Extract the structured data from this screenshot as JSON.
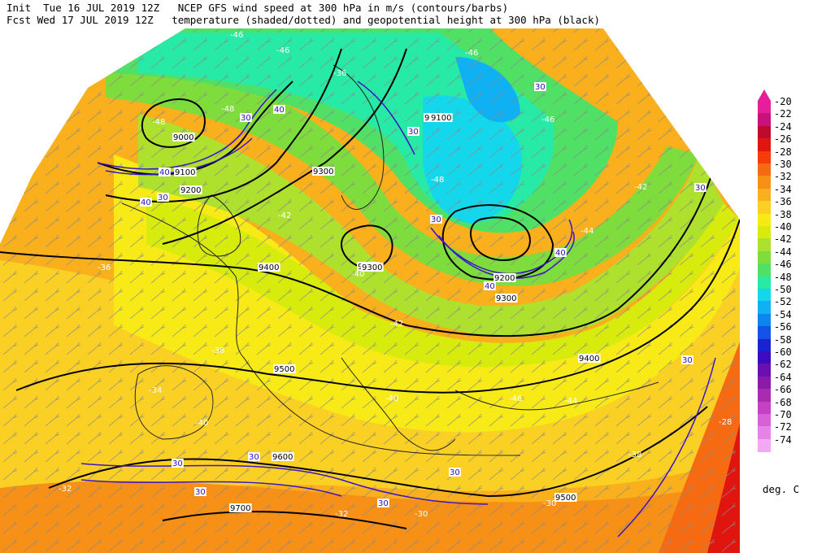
{
  "header": {
    "line1_left": "Init  Tue 16 JUL 2019 12Z",
    "line1_right": "NCEP GFS wind speed at 300 hPa in m/s (contours/barbs)",
    "line2_left": "Fcst Wed 17 JUL 2019 12Z",
    "line2_right": "temperature (shaded/dotted) and geopotential height at 300 hPa (black)"
  },
  "colorbar": {
    "units": "deg. C",
    "levels": [
      {
        "label": "-20",
        "color": "#e61e9a"
      },
      {
        "label": "-22",
        "color": "#c8117a"
      },
      {
        "label": "-24",
        "color": "#bd0a2d"
      },
      {
        "label": "-26",
        "color": "#e1150f"
      },
      {
        "label": "-28",
        "color": "#f53c0a"
      },
      {
        "label": "-30",
        "color": "#f66b11"
      },
      {
        "label": "-32",
        "color": "#f79016"
      },
      {
        "label": "-34",
        "color": "#f9b01c"
      },
      {
        "label": "-36",
        "color": "#fbd024"
      },
      {
        "label": "-38",
        "color": "#f7ea17"
      },
      {
        "label": "-40",
        "color": "#d7ec0d"
      },
      {
        "label": "-42",
        "color": "#aee02e"
      },
      {
        "label": "-44",
        "color": "#7edc3c"
      },
      {
        "label": "-46",
        "color": "#4fe065"
      },
      {
        "label": "-48",
        "color": "#27eaa6"
      },
      {
        "label": "-50",
        "color": "#14d7ec"
      },
      {
        "label": "-52",
        "color": "#0fb1f2"
      },
      {
        "label": "-54",
        "color": "#0e84f0"
      },
      {
        "label": "-56",
        "color": "#1453e6"
      },
      {
        "label": "-58",
        "color": "#1a23d2"
      },
      {
        "label": "-60",
        "color": "#3c0dc0"
      },
      {
        "label": "-62",
        "color": "#6a10b2"
      },
      {
        "label": "-64",
        "color": "#8a1ba8"
      },
      {
        "label": "-66",
        "color": "#a92bb0"
      },
      {
        "label": "-68",
        "color": "#c441c4"
      },
      {
        "label": "-70",
        "color": "#d761d7"
      },
      {
        "label": "-72",
        "color": "#e683e6"
      },
      {
        "label": "-74",
        "color": "#f3a8f3"
      }
    ]
  },
  "geopotential_labels": [
    "9000",
    "9100",
    "9200",
    "9300",
    "9300",
    "9300",
    "9300",
    "9400",
    "9400",
    "9500",
    "9500",
    "9600",
    "9700",
    "9100",
    "9200",
    "9300"
  ],
  "wind_labels": [
    "30",
    "30",
    "30",
    "30",
    "30",
    "30",
    "30",
    "30",
    "30",
    "30",
    "30",
    "30",
    "40",
    "40",
    "40",
    "40",
    "40"
  ],
  "temperature_labels": [
    "-46",
    "-46",
    "-48",
    "-48",
    "-48",
    "-46",
    "-44",
    "-42",
    "-42",
    "-40",
    "-40",
    "-38",
    "-38",
    "-36",
    "-36",
    "-34",
    "-32",
    "-32",
    "-30",
    "-30",
    "-28",
    "-40",
    "-42",
    "-44",
    "-46",
    "-46"
  ]
}
